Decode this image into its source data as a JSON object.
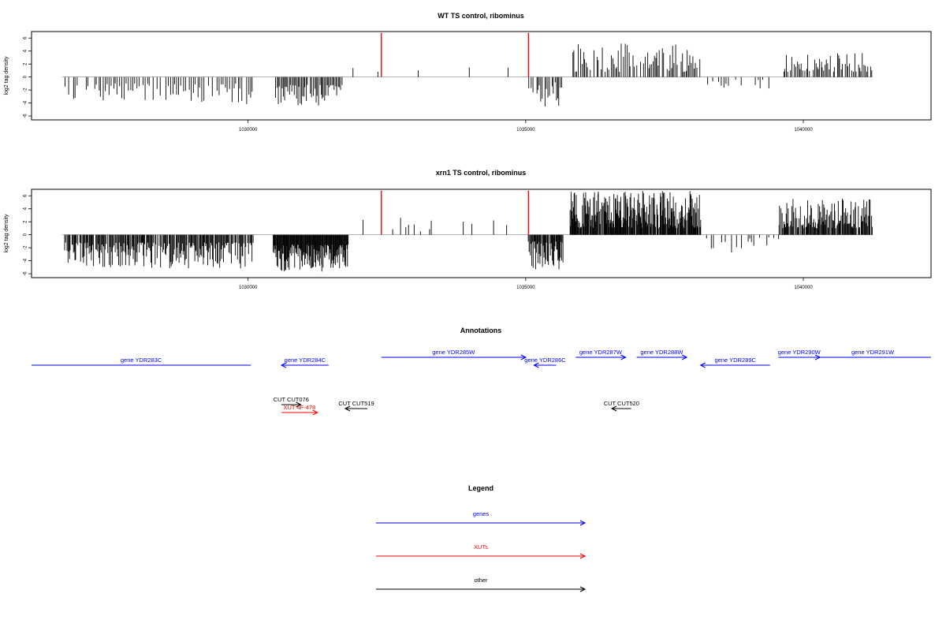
{
  "chart_data": [
    {
      "type": "bar",
      "title": "WT TS control, ribominus",
      "xlabel": "",
      "ylabel": "log2 tag density",
      "xlim": [
        1026100,
        1042300
      ],
      "ylim": [
        -6.6,
        7
      ],
      "xticks": [
        "1030000",
        "1035000",
        "1040000"
      ],
      "xtick_values": [
        1030000,
        1035000,
        1040000
      ],
      "yticks": [
        "6",
        "4",
        "2",
        "0",
        "-2",
        "-4",
        "-6"
      ],
      "ytick_values": [
        6,
        4,
        2,
        0,
        -2,
        -4,
        -6
      ],
      "grid": false,
      "colors": {
        "bars": "#000000",
        "highlight": "#ff0000",
        "baseline": "#999999"
      },
      "highlight_bars": {
        "x": [
          1032400,
          1035050
        ],
        "values": [
          6.8,
          6.8
        ]
      },
      "regions": [
        {
          "from": 1026700,
          "to": 1030100,
          "sign": -1,
          "min": 1.0,
          "max": 4.2,
          "step": 38,
          "density": 0.75
        },
        {
          "from": 1030500,
          "to": 1031700,
          "sign": -1,
          "min": 1.2,
          "max": 4.4,
          "step": 22,
          "density": 0.95
        },
        {
          "from": 1031850,
          "to": 1035000,
          "sign": 1,
          "min": 0.6,
          "max": 2.8,
          "step": 150,
          "density": 0.18
        },
        {
          "from": 1035050,
          "to": 1035650,
          "sign": -1,
          "min": 0.8,
          "max": 4.8,
          "step": 25,
          "density": 0.85
        },
        {
          "from": 1035850,
          "to": 1038150,
          "sign": 1,
          "min": 0.8,
          "max": 5.2,
          "step": 24,
          "density": 0.8
        },
        {
          "from": 1038200,
          "to": 1039500,
          "sign": -1,
          "min": 0.4,
          "max": 2.6,
          "step": 45,
          "density": 0.45
        },
        {
          "from": 1039650,
          "to": 1041250,
          "sign": 1,
          "min": 0.8,
          "max": 3.8,
          "step": 24,
          "density": 0.8
        }
      ]
    },
    {
      "type": "bar",
      "title": "xrn1 TS control, ribominus",
      "xlabel": "",
      "ylabel": "log2 tag density",
      "xlim": [
        1026100,
        1042300
      ],
      "ylim": [
        -6.6,
        7
      ],
      "xticks": [
        "1030000",
        "1035000",
        "1040000"
      ],
      "xtick_values": [
        1030000,
        1035000,
        1040000
      ],
      "yticks": [
        "6",
        "4",
        "2",
        "0",
        "-2",
        "-4",
        "-6"
      ],
      "ytick_values": [
        6,
        4,
        2,
        0,
        -2,
        -4,
        -6
      ],
      "grid": false,
      "colors": {
        "bars": "#000000",
        "highlight": "#ff0000",
        "baseline": "#999999"
      },
      "highlight_bars": {
        "x": [
          1032400,
          1035050
        ],
        "values": [
          6.8,
          6.8
        ]
      },
      "regions": [
        {
          "from": 1026700,
          "to": 1030100,
          "sign": -1,
          "min": 1.2,
          "max": 5.2,
          "step": 14,
          "density": 0.9
        },
        {
          "from": 1030450,
          "to": 1031800,
          "sign": -1,
          "min": 1.5,
          "max": 5.8,
          "step": 10,
          "density": 1.0
        },
        {
          "from": 1031850,
          "to": 1035000,
          "sign": 1,
          "min": 0.5,
          "max": 3.6,
          "step": 70,
          "density": 0.4
        },
        {
          "from": 1035050,
          "to": 1035700,
          "sign": -1,
          "min": 1.0,
          "max": 5.4,
          "step": 12,
          "density": 0.95
        },
        {
          "from": 1035800,
          "to": 1038150,
          "sign": 1,
          "min": 1.0,
          "max": 6.8,
          "step": 10,
          "density": 0.95
        },
        {
          "from": 1038200,
          "to": 1039550,
          "sign": -1,
          "min": 0.4,
          "max": 2.8,
          "step": 30,
          "density": 0.5
        },
        {
          "from": 1039550,
          "to": 1041250,
          "sign": 1,
          "min": 1.0,
          "max": 5.6,
          "step": 12,
          "density": 0.9
        }
      ]
    }
  ],
  "annotations": {
    "title": "Annotations",
    "xlim": [
      1026100,
      1042300
    ],
    "genes_color": "#0000ff",
    "xut_color": "#ff0000",
    "other_color": "#000000",
    "features": [
      {
        "label": "gene YDR283C",
        "start": 1026100,
        "end": 1030050,
        "strand": "none",
        "row": 1,
        "kind": "gene"
      },
      {
        "label": "gene YDR284C",
        "start": 1030600,
        "end": 1031450,
        "strand": "-",
        "row": 1,
        "kind": "gene"
      },
      {
        "label": "gene YDR285W",
        "start": 1032400,
        "end": 1035000,
        "strand": "+",
        "row": 0,
        "kind": "gene"
      },
      {
        "label": "gene YDR286C",
        "start": 1035150,
        "end": 1035550,
        "strand": "-",
        "row": 1,
        "kind": "gene"
      },
      {
        "label": "gene YDR287W",
        "start": 1035900,
        "end": 1036800,
        "strand": "+",
        "row": 0,
        "kind": "gene"
      },
      {
        "label": "gene YDR288W",
        "start": 1037000,
        "end": 1037900,
        "strand": "+",
        "row": 0,
        "kind": "gene"
      },
      {
        "label": "gene YDR289C",
        "start": 1038150,
        "end": 1039400,
        "strand": "-",
        "row": 1,
        "kind": "gene"
      },
      {
        "label": "gene YDR290W",
        "start": 1039550,
        "end": 1040300,
        "strand": "+",
        "row": 0,
        "kind": "gene"
      },
      {
        "label": "gene YDR291W",
        "start": 1040200,
        "end": 1042300,
        "strand": "none",
        "row": 0,
        "kind": "gene"
      },
      {
        "label": "CUT CUT076",
        "start": 1030600,
        "end": 1030950,
        "strand": "+",
        "row": 2,
        "kind": "other"
      },
      {
        "label": "XUT 4F-478",
        "start": 1030600,
        "end": 1031250,
        "strand": "+",
        "row": 3,
        "kind": "xut"
      },
      {
        "label": "CUT CUT519",
        "start": 1031750,
        "end": 1032150,
        "strand": "-",
        "row": 2.5,
        "kind": "other"
      },
      {
        "label": "CUT CUT520",
        "start": 1036550,
        "end": 1036900,
        "strand": "-",
        "row": 2.5,
        "kind": "other"
      }
    ]
  },
  "legend": {
    "title": "Legend",
    "items": [
      {
        "label": "genes",
        "color": "#0000ff"
      },
      {
        "label": "XUTs",
        "color": "#ff0000"
      },
      {
        "label": "other",
        "color": "#000000"
      }
    ]
  }
}
